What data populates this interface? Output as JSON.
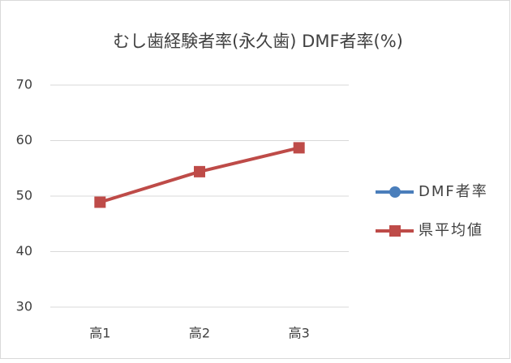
{
  "chart_data": {
    "type": "line",
    "title": "むし歯経験者率(永久歯) DMF者率(%)",
    "categories": [
      "高1",
      "高2",
      "高3"
    ],
    "series": [
      {
        "name": "DMF者率",
        "color": "#4a7ebb",
        "marker": "circle",
        "values": [
          null,
          null,
          null
        ]
      },
      {
        "name": "県平均値",
        "color": "#be4b48",
        "marker": "square",
        "values": [
          48.9,
          54.4,
          58.7
        ]
      }
    ],
    "ylim": [
      30,
      70
    ],
    "yticks": [
      30,
      40,
      50,
      60,
      70
    ],
    "grid": true,
    "legend": "right"
  }
}
